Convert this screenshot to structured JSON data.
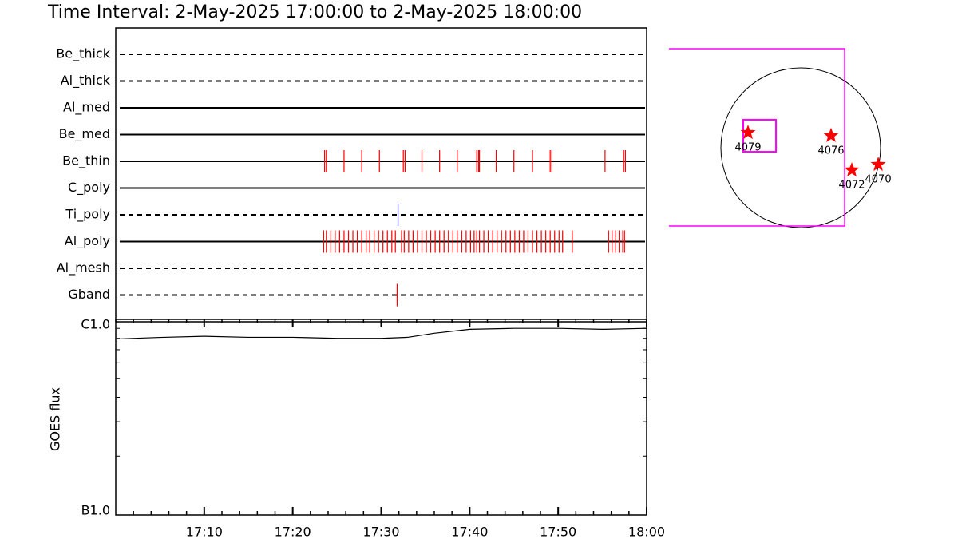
{
  "chart_data": [
    {
      "type": "timeline",
      "title": "Time Interval:  2-May-2025 17:00:00 to  2-May-2025 18:00:00",
      "xlim": [
        0,
        60
      ],
      "series": [
        {
          "name": "Be_thick",
          "linestyle": "dashed",
          "color": "#ff0000",
          "values": []
        },
        {
          "name": "Al_thick",
          "linestyle": "dashed",
          "color": "#ff0000",
          "values": []
        },
        {
          "name": "Al_med",
          "linestyle": "solid",
          "color": "#ff0000",
          "values": []
        },
        {
          "name": "Be_med",
          "linestyle": "solid",
          "color": "#ff0000",
          "values": []
        },
        {
          "name": "Be_thin",
          "linestyle": "solid",
          "color": "#ff0000",
          "values": [
            23.6,
            23.8,
            25.8,
            27.8,
            29.8,
            32.5,
            32.7,
            34.6,
            36.6,
            38.6,
            40.8,
            41.0,
            41.1,
            43.0,
            45.0,
            47.1,
            49.1,
            49.3,
            55.3,
            57.4,
            57.6
          ]
        },
        {
          "name": "C_poly",
          "linestyle": "solid",
          "color": "#ff0000",
          "values": []
        },
        {
          "name": "Ti_poly",
          "linestyle": "dashed",
          "color": "#0000ff",
          "values": [
            31.9
          ]
        },
        {
          "name": "Al_poly",
          "linestyle": "solid",
          "color": "#ff0000",
          "values": [
            23.5,
            23.8,
            24.3,
            24.8,
            25.3,
            25.8,
            26.3,
            26.8,
            27.3,
            27.8,
            28.3,
            28.7,
            29.2,
            29.7,
            30.2,
            30.7,
            31.2,
            31.6,
            32.3,
            32.6,
            33.1,
            33.6,
            34.1,
            34.6,
            35.1,
            35.6,
            36.1,
            36.6,
            37.1,
            37.6,
            38.1,
            38.6,
            39.1,
            39.6,
            40.1,
            40.5,
            40.8,
            41.1,
            41.6,
            42.1,
            42.6,
            43.1,
            43.6,
            44.1,
            44.6,
            45.1,
            45.6,
            46.1,
            46.6,
            47.1,
            47.6,
            48.1,
            48.6,
            49.1,
            49.6,
            50.1,
            50.5,
            51.6,
            55.7,
            56.1,
            56.5,
            56.9,
            57.3,
            57.5
          ]
        },
        {
          "name": "Al_mesh",
          "linestyle": "dashed",
          "color": "#ff0000",
          "values": []
        },
        {
          "name": "Gband",
          "linestyle": "dashed",
          "color": "#ff0000",
          "values": [
            31.8
          ]
        }
      ]
    },
    {
      "type": "line",
      "y_label": "GOES flux",
      "log_y": true,
      "color": "#000000",
      "x": [
        0,
        5,
        10,
        15,
        20,
        25,
        30,
        33,
        36,
        40,
        45,
        50,
        55,
        60
      ],
      "values": [
        7.94e-07,
        8.09e-07,
        8.2e-07,
        8.1e-07,
        8.1e-07,
        8e-07,
        8e-07,
        8.1e-07,
        8.5e-07,
        8.9e-07,
        9e-07,
        9e-07,
        8.9e-07,
        9e-07
      ],
      "xlim": [
        0,
        60
      ],
      "xticks": [
        {
          "value": 10,
          "label": "17:10"
        },
        {
          "value": 20,
          "label": "17:20"
        },
        {
          "value": 30,
          "label": "17:30"
        },
        {
          "value": 40,
          "label": "17:40"
        },
        {
          "value": 50,
          "label": "17:50"
        },
        {
          "value": 60,
          "label": "18:00"
        }
      ],
      "ylim": [
        1e-07,
        1e-06
      ],
      "yticks": [
        {
          "value": 1e-07,
          "label": "B1.0"
        },
        {
          "value": 1e-06,
          "label": "C1.0"
        }
      ]
    },
    {
      "type": "map",
      "disk_radius": 950,
      "disk_color": "#000000",
      "fov_color": "#ff00ff",
      "point_color": "#ff0000",
      "fov": {
        "x": [
          -1568,
          523
        ],
        "y": [
          -931,
          1178
        ]
      },
      "box": {
        "x": [
          -684,
          -294
        ],
        "y": [
          -48,
          333
        ]
      },
      "labels": [
        "4079",
        "4076",
        "4072",
        "4070"
      ],
      "x": [
        -627,
        361,
        608,
        922
      ],
      "y": [
        180,
        143,
        -266,
        -200
      ]
    }
  ]
}
